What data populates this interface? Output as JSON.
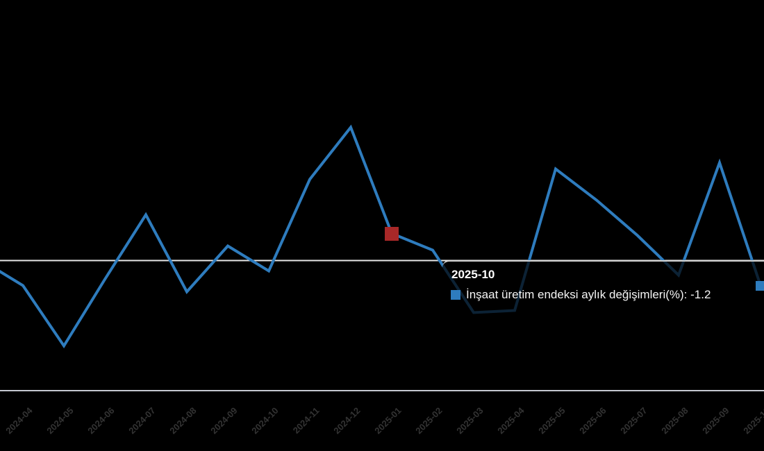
{
  "chart_data": {
    "type": "line",
    "title": "",
    "categories": [
      "2024-04",
      "2024-05",
      "2024-06",
      "2024-07",
      "2024-08",
      "2024-09",
      "2024-10",
      "2024-11",
      "2024-12",
      "2025-01",
      "2025-02",
      "2025-03",
      "2025-04",
      "2025-05",
      "2025-06",
      "2025-07",
      "2025-08",
      "2025-09",
      "2025-10"
    ],
    "series": [
      {
        "name": "İnşaat üretim endeksi aylık değişimleri(%)",
        "values": [
          -1.2,
          -4.1,
          -0.9,
          2.2,
          -1.5,
          0.7,
          -0.5,
          3.9,
          6.4,
          1.3,
          0.5,
          -2.5,
          -2.4,
          4.4,
          2.9,
          1.2,
          -0.7,
          4.7,
          -1.2
        ]
      }
    ],
    "offscreen_prev_point_value": 0,
    "markers": [
      {
        "index": 9,
        "category": "2025-01",
        "shape": "square",
        "size": 20,
        "color": "#a82828",
        "name": "highlight-point-marker"
      },
      {
        "index": 18,
        "category": "2025-10",
        "shape": "square",
        "size": 14,
        "color": "#2e7cbe",
        "name": "active-point-marker"
      }
    ],
    "zero_gridline": true,
    "legend_position": "none",
    "yaxis_labels_visible": false
  },
  "tooltip": {
    "title": "2025-10",
    "series_label": "İnşaat üretim endeksi aylık değişimleri(%)",
    "value": "-1.2",
    "full_line": "İnşaat üretim endeksi aylık değişimleri(%): -1.2"
  },
  "colors": {
    "background": "#000000",
    "line": "#2e7cbe",
    "red_marker": "#a82828",
    "legend_square": "#2e7cbe",
    "axis_line": "#c6c9d2",
    "zero_line": "#e8e8e8",
    "axis_label_text": "#333333",
    "tooltip_text": "#ffffff"
  }
}
